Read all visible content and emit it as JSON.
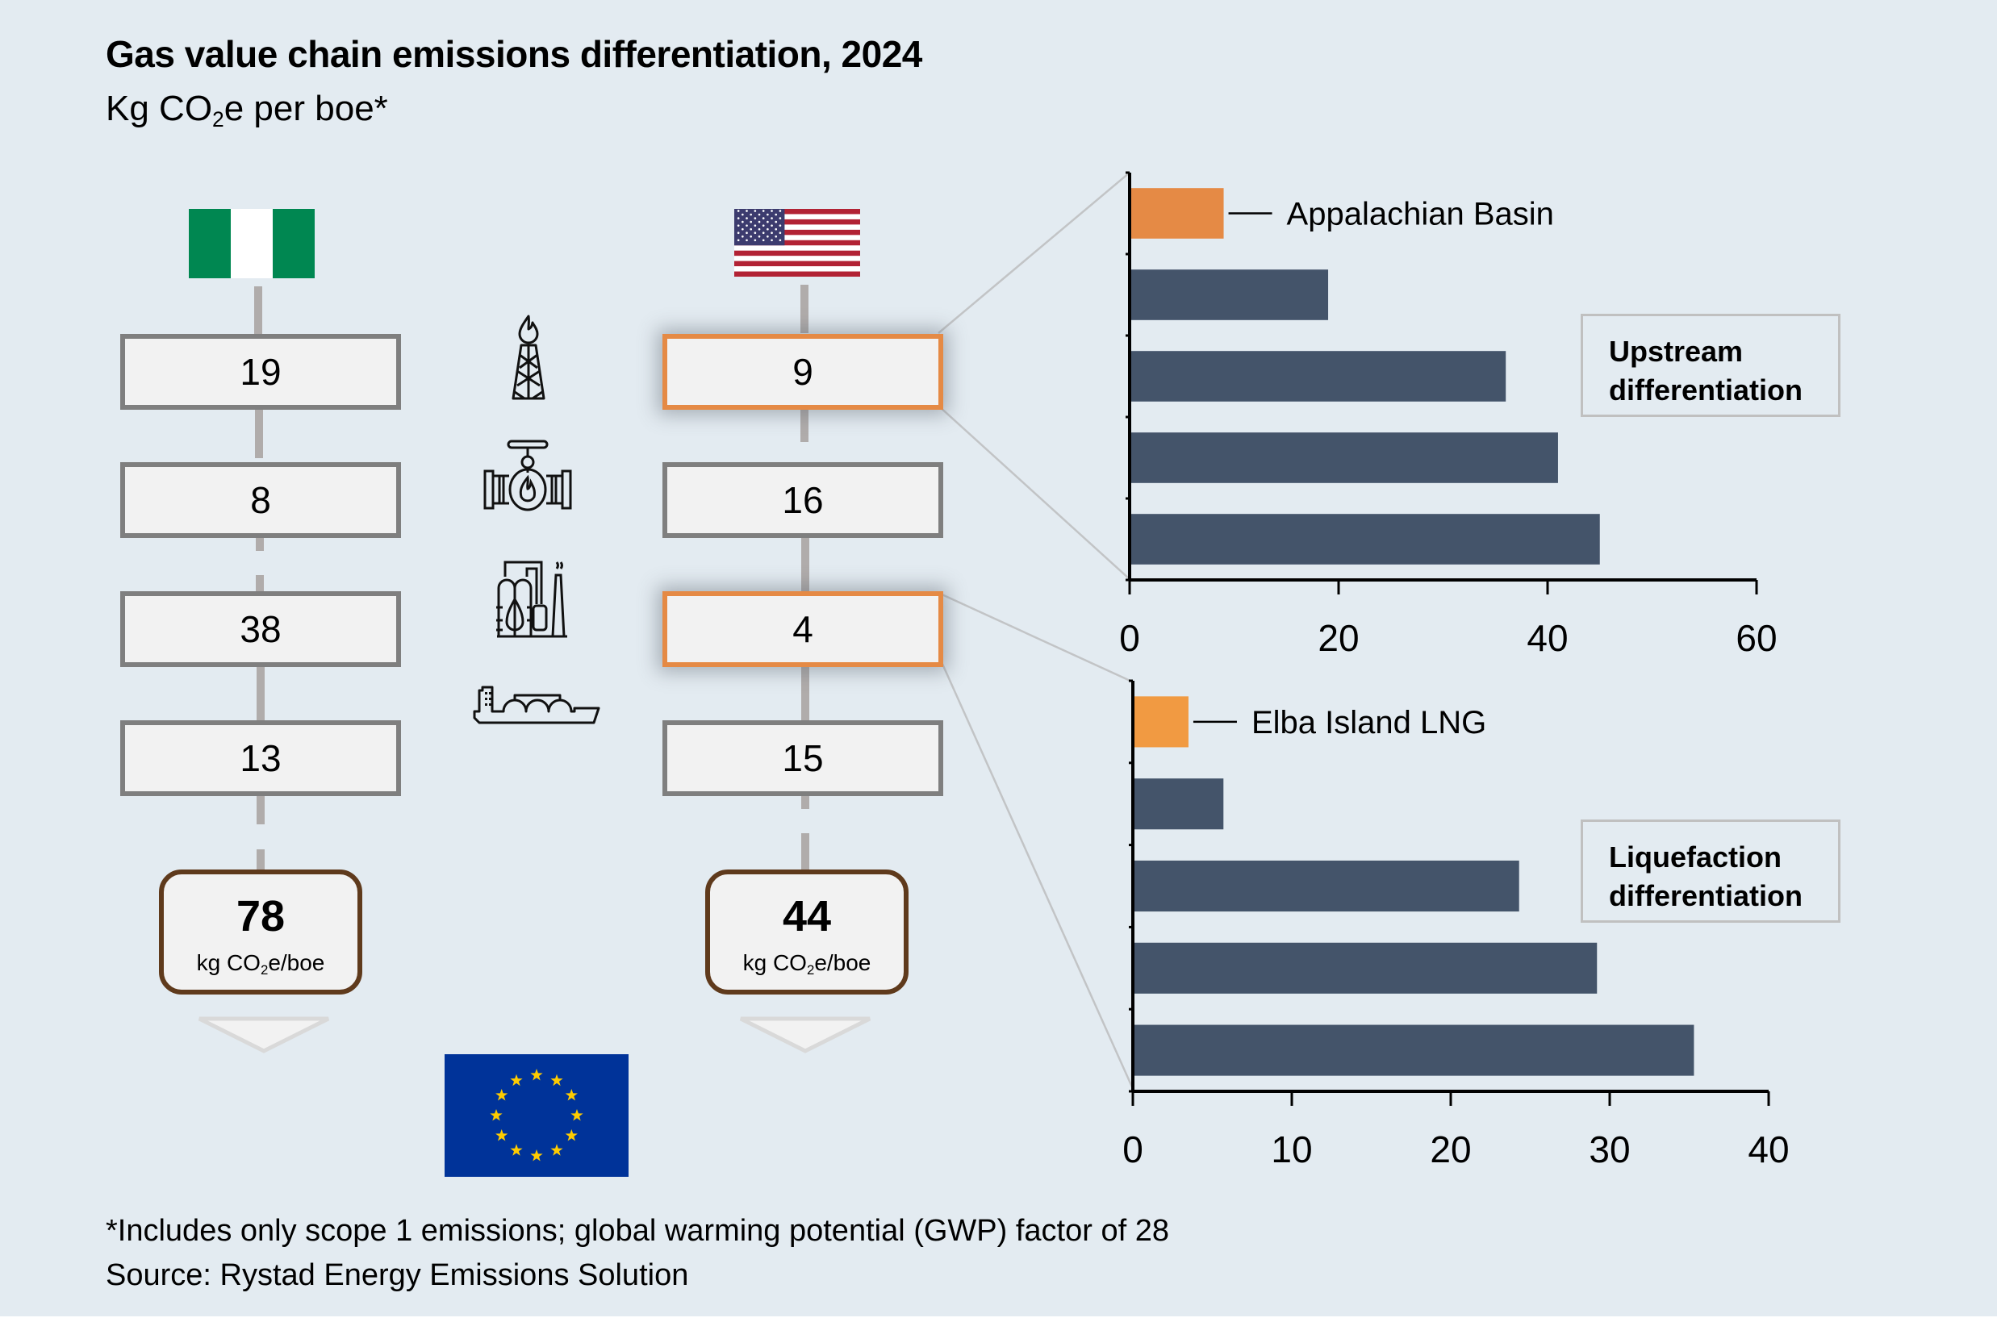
{
  "header": {
    "title": "Gas value chain emissions differentiation, 2024",
    "subtitle_prefix": "Kg CO",
    "subtitle_sub": "2",
    "subtitle_suffix": "e per boe*"
  },
  "stages": [
    {
      "name": "Upstream",
      "icon": "gas-rig-flare-icon"
    },
    {
      "name": "Pipeline transport",
      "icon": "gas-valve-pipeline-icon"
    },
    {
      "name": "Liquefaction",
      "icon": "lng-plant-icon"
    },
    {
      "name": "Shipping",
      "icon": "lng-carrier-ship-icon"
    }
  ],
  "columns": [
    {
      "country": "Nigeria",
      "flag": "nigeria-flag",
      "values": [
        "19",
        "8",
        "38",
        "13"
      ],
      "highlighted": [
        false,
        false,
        false,
        false
      ],
      "total": "78",
      "total_unit_prefix": "kg CO",
      "total_unit_sub": "2",
      "total_unit_suffix": "e/boe"
    },
    {
      "country": "United States",
      "flag": "us-flag",
      "values": [
        "9",
        "16",
        "4",
        "15"
      ],
      "highlighted": [
        true,
        false,
        true,
        false
      ],
      "total": "44",
      "total_unit_prefix": "kg CO",
      "total_unit_sub": "2",
      "total_unit_suffix": "e/boe"
    }
  ],
  "destination": {
    "name": "European Union",
    "flag": "eu-flag"
  },
  "colors": {
    "background": "#e3ebf1",
    "highlight_orange": "#e58a45",
    "highlight_orange_light": "#f19a42",
    "bar_dark": "#44546a",
    "box_border": "#7f7f7f",
    "total_border": "#5f3a1c",
    "nigeria_green": "#008751",
    "eu_blue": "#003399",
    "eu_gold": "#ffcc00"
  },
  "chart_data": [
    {
      "type": "bar",
      "orientation": "horizontal",
      "title": "Upstream differentiation",
      "annotation": "Appalachian Basin",
      "highlight_index": 0,
      "categories": [
        "Appalachian Basin",
        "",
        "",
        "",
        ""
      ],
      "values": [
        9,
        19,
        36,
        41,
        45
      ],
      "xlim": [
        0,
        60
      ],
      "xticks": [
        0,
        20,
        40,
        60
      ],
      "xtick_labels": [
        "0",
        "20",
        "40",
        "60"
      ],
      "xlabel": "",
      "ylabel": "",
      "grid": false,
      "label_box_position": "right"
    },
    {
      "type": "bar",
      "orientation": "horizontal",
      "title": "Liquefaction differentiation",
      "annotation": "Elba Island LNG",
      "highlight_index": 0,
      "categories": [
        "Elba Island LNG",
        "",
        "",
        "",
        ""
      ],
      "values": [
        3.5,
        5.7,
        24.3,
        29.2,
        35.3
      ],
      "xlim": [
        0,
        40
      ],
      "xticks": [
        0,
        10,
        20,
        30,
        40
      ],
      "xtick_labels": [
        "0",
        "10",
        "20",
        "30",
        "40"
      ],
      "xlabel": "",
      "ylabel": "",
      "grid": false,
      "label_box_position": "right"
    }
  ],
  "footer": {
    "note": "*Includes only scope 1 emissions; global warming potential (GWP) factor of 28",
    "source": "Source: Rystad Energy Emissions Solution"
  }
}
